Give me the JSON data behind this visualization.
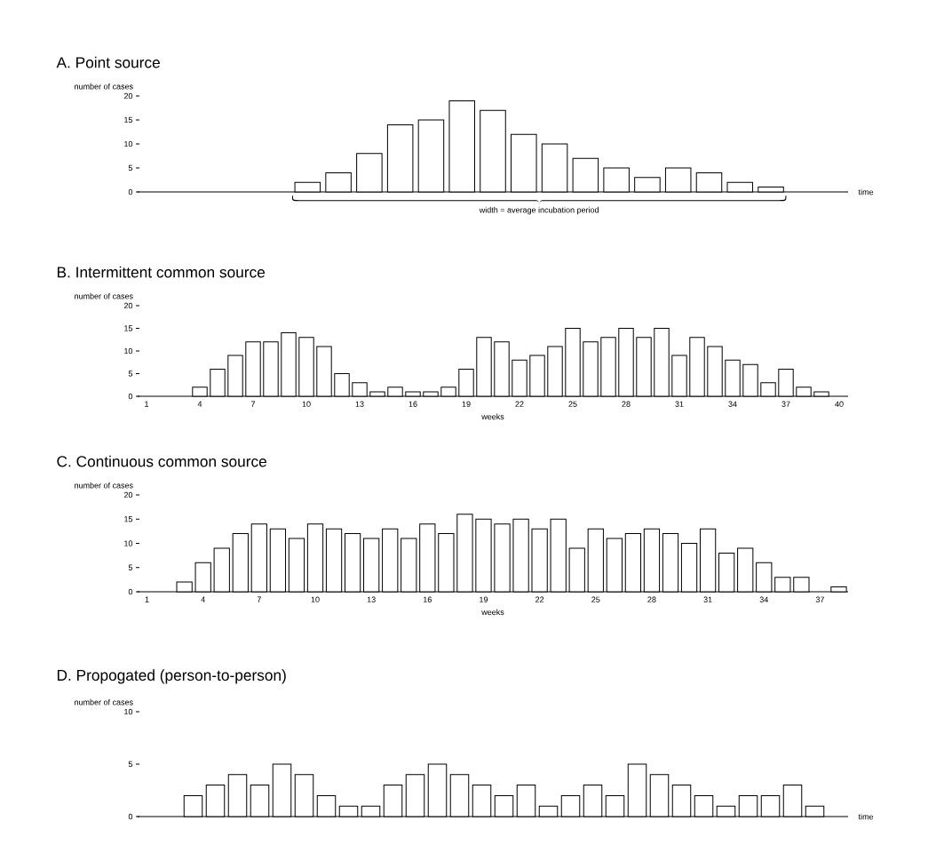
{
  "chart_data": [
    {
      "type": "bar",
      "title": "A. Point source",
      "ylabel": "number of cases",
      "xlabel": "time",
      "annotations": [
        "width = average incubation period"
      ],
      "color": "#ffffff",
      "categories": [
        null,
        null,
        null,
        null,
        null,
        null,
        null,
        null,
        null,
        null,
        null,
        null,
        null,
        null,
        null,
        null,
        null,
        null,
        null,
        null,
        null,
        null,
        null
      ],
      "values": [
        null,
        null,
        null,
        null,
        null,
        2,
        4,
        8,
        14,
        15,
        19,
        17,
        12,
        10,
        7,
        5,
        3,
        5,
        4,
        2,
        1,
        null,
        null
      ],
      "ylim": [
        0,
        20
      ],
      "yticks": [
        0,
        5,
        10,
        15,
        20
      ],
      "tick_labels": "y"
    },
    {
      "type": "bar",
      "title": "B. Intermittent common source",
      "ylabel": "number of cases",
      "xlabel": "weeks",
      "color": "#ffffff",
      "categories": [
        "1",
        null,
        null,
        "4",
        null,
        null,
        "7",
        null,
        null,
        "10",
        null,
        null,
        "13",
        null,
        null,
        "16",
        null,
        null,
        "19",
        null,
        null,
        "22",
        null,
        null,
        "25",
        null,
        null,
        "28",
        null,
        null,
        "31",
        null,
        null,
        "34",
        null,
        null,
        "37",
        null,
        null,
        "40"
      ],
      "values": [
        null,
        null,
        null,
        2,
        6,
        9,
        12,
        12,
        14,
        13,
        11,
        5,
        3,
        1,
        2,
        1,
        1,
        2,
        6,
        13,
        12,
        8,
        9,
        11,
        15,
        12,
        13,
        15,
        13,
        15,
        9,
        13,
        11,
        8,
        7,
        3,
        6,
        2,
        1,
        null
      ],
      "ylim": [
        0,
        20
      ],
      "yticks": [
        0,
        5,
        10,
        15,
        20
      ]
    },
    {
      "type": "bar",
      "title": "C. Continuous common source",
      "ylabel": "number of cases",
      "xlabel": "weeks",
      "color": "#ffffff",
      "categories": [
        "1",
        null,
        null,
        "4",
        null,
        null,
        "7",
        null,
        null,
        "10",
        null,
        null,
        "13",
        null,
        null,
        "16",
        null,
        null,
        "19",
        null,
        null,
        "22",
        null,
        null,
        "25",
        null,
        null,
        "28",
        null,
        null,
        "31",
        null,
        null,
        "34",
        null,
        null,
        "37",
        null
      ],
      "values": [
        null,
        null,
        2,
        6,
        9,
        12,
        14,
        13,
        11,
        14,
        13,
        12,
        11,
        13,
        11,
        14,
        12,
        16,
        15,
        14,
        15,
        13,
        15,
        9,
        13,
        11,
        12,
        13,
        12,
        10,
        13,
        8,
        9,
        6,
        3,
        3,
        null,
        1
      ],
      "ylim": [
        0,
        20
      ],
      "yticks": [
        0,
        5,
        10,
        15,
        20
      ]
    },
    {
      "type": "bar",
      "title": "D. Propogated (person-to-person)",
      "ylabel": "number of cases",
      "xlabel": "time",
      "color": "#ffffff",
      "categories": [
        null,
        null,
        null,
        null,
        null,
        null,
        null,
        null,
        null,
        null,
        null,
        null,
        null,
        null,
        null,
        null,
        null,
        null,
        null,
        null,
        null,
        null,
        null,
        null,
        null,
        null,
        null,
        null,
        null,
        null,
        null,
        null
      ],
      "values": [
        null,
        null,
        2,
        3,
        4,
        3,
        5,
        4,
        2,
        1,
        1,
        3,
        4,
        5,
        4,
        3,
        2,
        3,
        1,
        2,
        3,
        2,
        5,
        4,
        3,
        2,
        1,
        2,
        2,
        3,
        1,
        null
      ],
      "ylim": [
        0,
        10
      ],
      "yticks": [
        0,
        5,
        10
      ],
      "tick_labels": "y"
    }
  ]
}
